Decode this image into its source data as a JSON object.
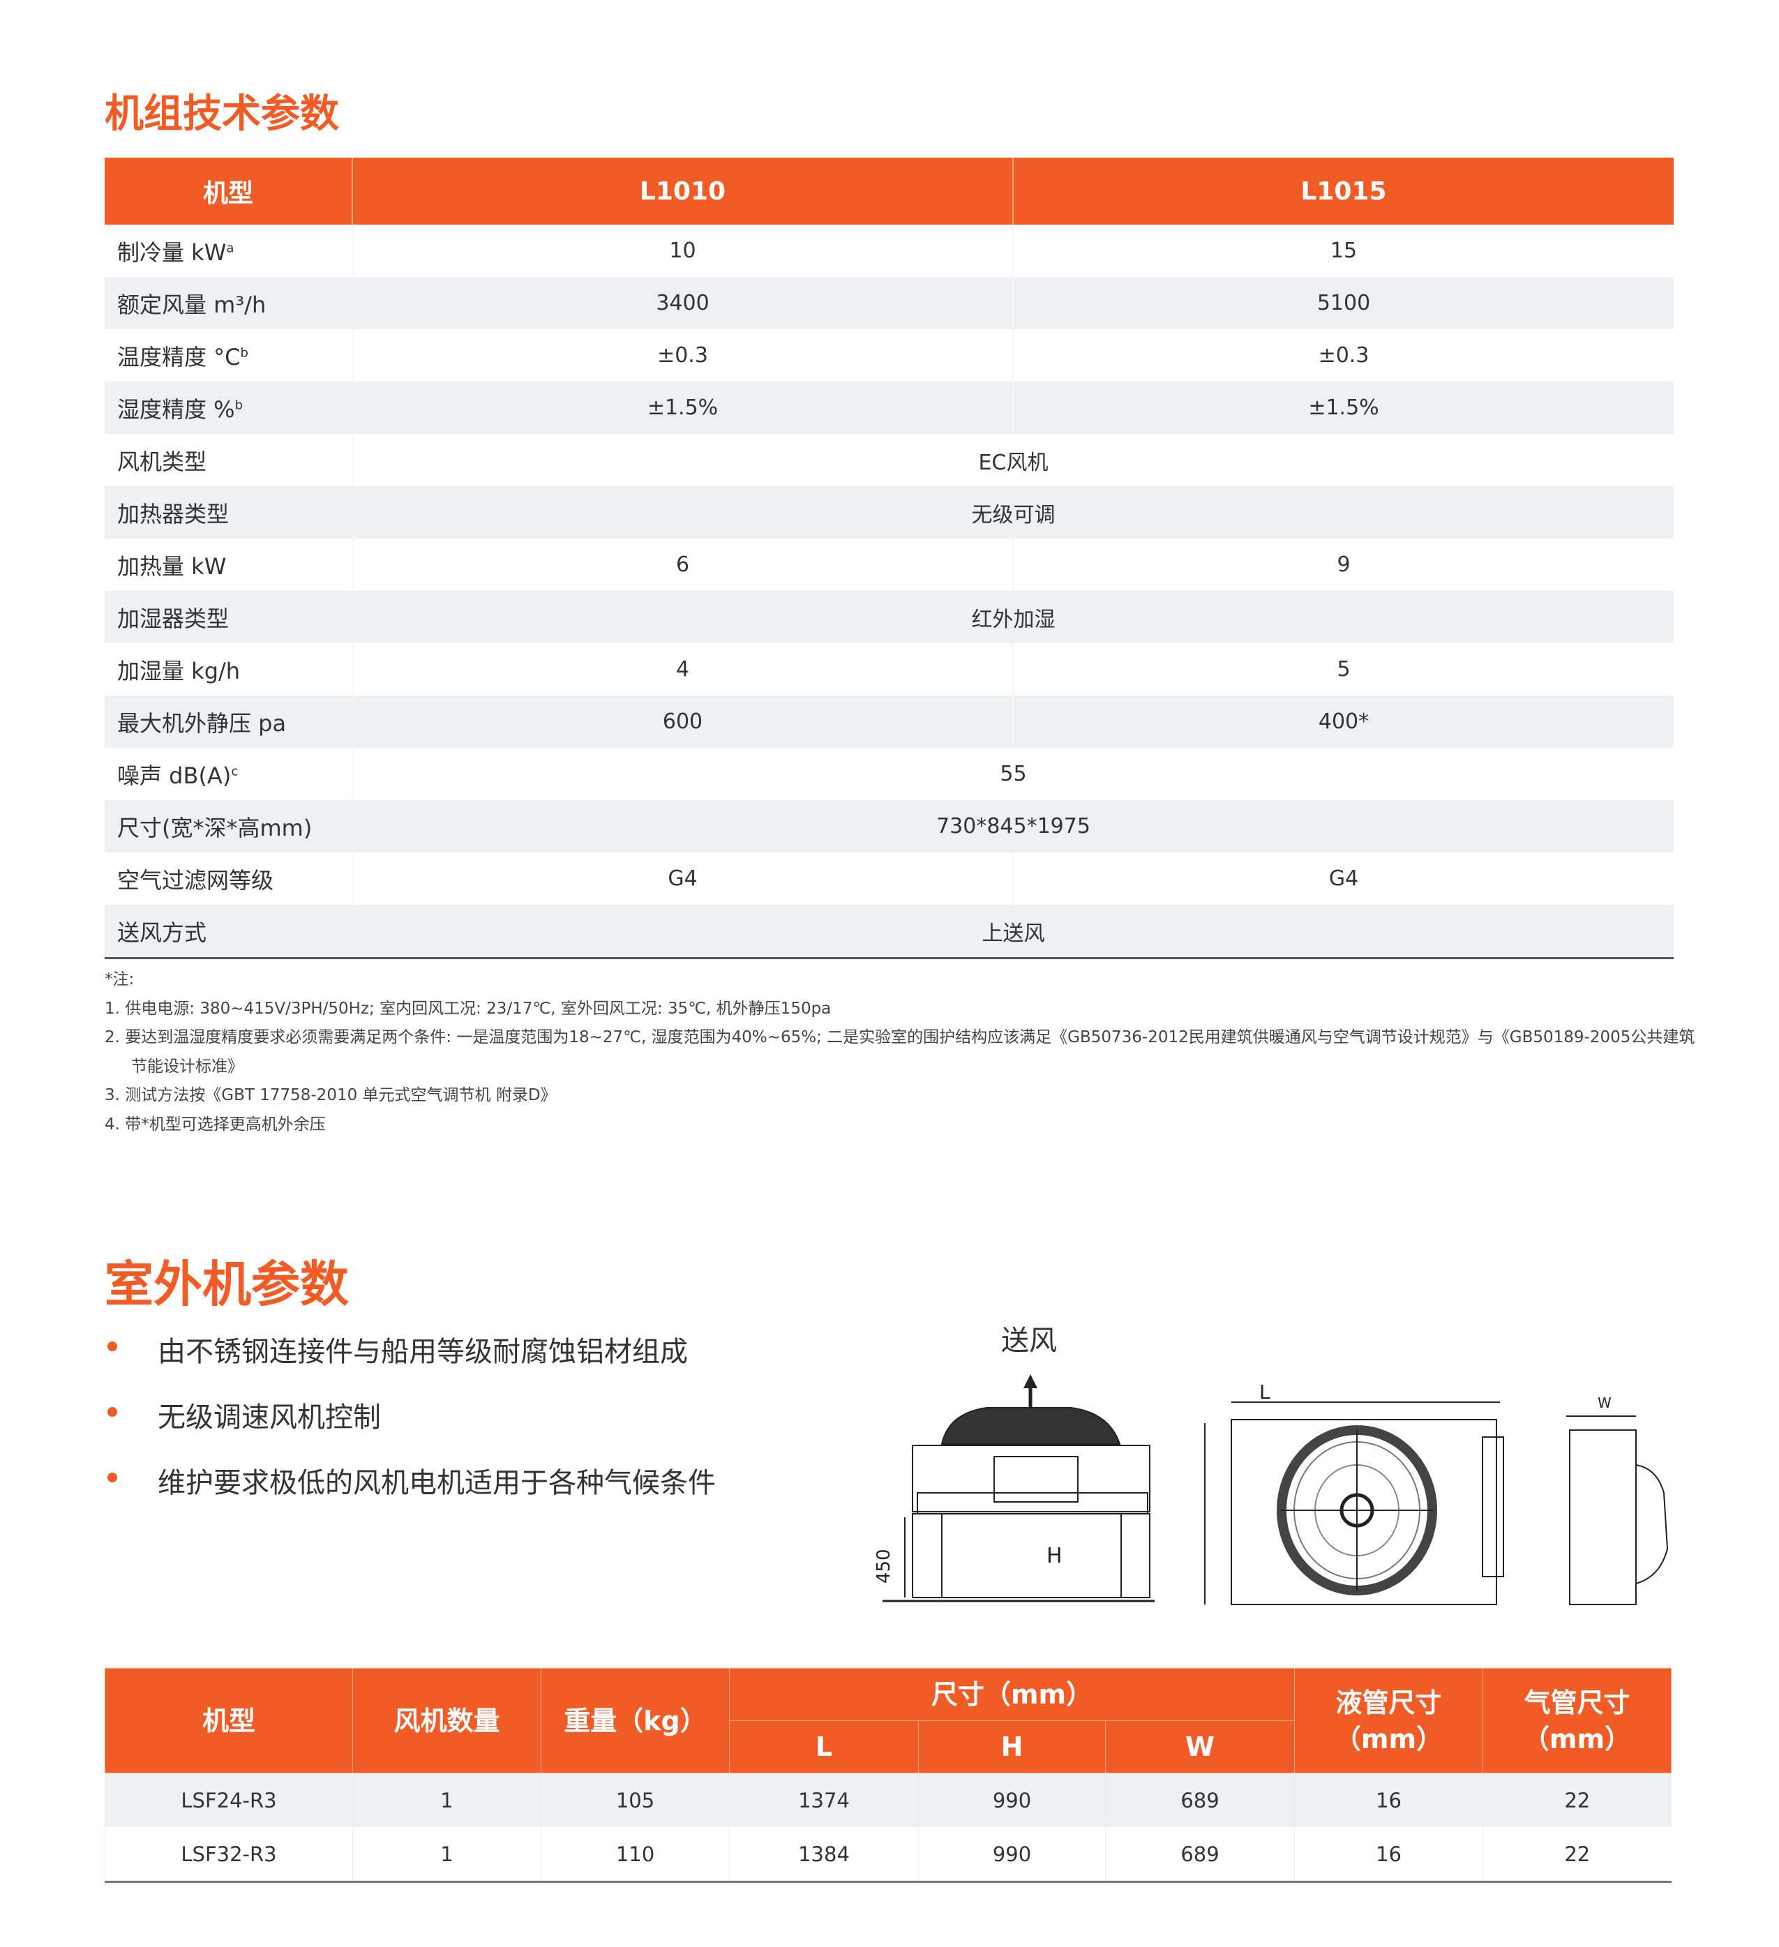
{
  "section1": {
    "title": "机组技术参数"
  },
  "spec_table": {
    "headers": [
      "机型",
      "L1010",
      "L1015"
    ],
    "rows": [
      {
        "label": "制冷量 kW",
        "sup": "a",
        "values": [
          "10",
          "15"
        ]
      },
      {
        "label": "额定风量 m³/h",
        "sup": "",
        "values": [
          "3400",
          "5100"
        ]
      },
      {
        "label": "温度精度 °C",
        "sup": "b",
        "values": [
          "±0.3",
          "±0.3"
        ]
      },
      {
        "label": "湿度精度 %",
        "sup": "b",
        "values": [
          "±1.5%",
          "±1.5%"
        ]
      },
      {
        "label": "风机类型",
        "sup": "",
        "span": "EC风机"
      },
      {
        "label": "加热器类型",
        "sup": "",
        "span": "无级可调"
      },
      {
        "label": "加热量 kW",
        "sup": "",
        "values": [
          "6",
          "9"
        ]
      },
      {
        "label": "加湿器类型",
        "sup": "",
        "span": "红外加湿"
      },
      {
        "label": "加湿量 kg/h",
        "sup": "",
        "values": [
          "4",
          "5"
        ]
      },
      {
        "label": "最大机外静压 pa",
        "sup": "",
        "values": [
          "600",
          "400*"
        ]
      },
      {
        "label": "噪声 dB(A)",
        "sup": "c",
        "span": "55"
      },
      {
        "label": "尺寸(宽*深*高mm)",
        "sup": "",
        "span": "730*845*1975"
      },
      {
        "label": "空气过滤网等级",
        "sup": "",
        "values": [
          "G4",
          "G4"
        ]
      },
      {
        "label": "送风方式",
        "sup": "",
        "span": "上送风"
      }
    ]
  },
  "notes": {
    "heading": "*注:",
    "items": [
      "1.  供电电源: 380~415V/3PH/50Hz; 室内回风工况: 23/17℃, 室外回风工况: 35℃, 机外静压150pa",
      "2.  要达到温湿度精度要求必须需要满足两个条件: 一是温度范围为18~27℃, 湿度范围为40%~65%; 二是实验室的围护结构应该满足《GB50736-2012民用建筑供暖通风与空气调节设计规范》与《GB50189-2005公共建筑节能设计标准》",
      "3.  测试方法按《GBT 17758-2010 单元式空气调节机 附录D》",
      "4.  带*机型可选择更高机外余压"
    ]
  },
  "section2": {
    "title": "室外机参数",
    "bullets": [
      "由不锈钢连接件与船用等级耐腐蚀铝材组成",
      "无级调速风机控制",
      "维护要求极低的风机电机适用于各种气候条件"
    ]
  },
  "drawing": {
    "airflow_label": "送风",
    "L_label": "L",
    "H_label": "H",
    "height_label": "450",
    "W_label": "W"
  },
  "outdoor_table": {
    "headers": {
      "model": "机型",
      "fans": "风机数量",
      "weight": "重量（kg）",
      "size": "尺寸（mm）",
      "L": "L",
      "H": "H",
      "W": "W",
      "liquid": "液管尺寸（mm）",
      "gas": "气管尺寸（mm）"
    },
    "rows": [
      [
        "LSF24-R3",
        "1",
        "105",
        "1374",
        "990",
        "689",
        "16",
        "22"
      ],
      [
        "LSF32-R3",
        "1",
        "110",
        "1384",
        "990",
        "689",
        "16",
        "22"
      ]
    ]
  },
  "colors": {
    "accent": "#F15C26",
    "stripe": "#EFF0F2"
  }
}
